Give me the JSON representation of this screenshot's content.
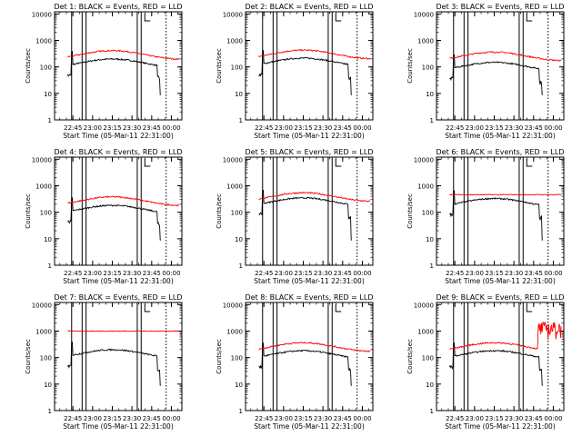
{
  "figure": {
    "background": "#ffffff",
    "axis_color": "#000000",
    "black_color": "#000000",
    "red_color": "#ff0000"
  },
  "chart_data": [
    {
      "type": "line",
      "title": "Det  1: BLACK = Events, RED = LLD",
      "xlabel": "Start Time (05-Mar-11 22:31:00)",
      "ylabel": "Counts/sec",
      "yscale": "log",
      "ylim": [
        1,
        12000
      ],
      "xticks": [
        "22:45",
        "23:00",
        "23:15",
        "23:30",
        "23:45",
        "00:00"
      ],
      "yticks": [
        "1",
        "10",
        "100",
        "1000",
        "10000"
      ],
      "solid_markers": [
        "22:44",
        "22:52",
        "22:55",
        "23:34",
        "23:37"
      ],
      "dotted_markers": [
        "23:56"
      ],
      "series": [
        {
          "color": "black",
          "level": 120,
          "profile": "events"
        },
        {
          "color": "red",
          "level": 250,
          "profile": "lld"
        }
      ]
    },
    {
      "type": "line",
      "title": "Det  2: BLACK = Events, RED = LLD",
      "xlabel": "Start Time (05-Mar-11 22:31:00)",
      "ylabel": "Counts/sec",
      "yscale": "log",
      "ylim": [
        1,
        12000
      ],
      "xticks": [
        "22:45",
        "23:00",
        "23:15",
        "23:30",
        "23:45",
        "00:00"
      ],
      "yticks": [
        "1",
        "10",
        "100",
        "1000",
        "10000"
      ],
      "solid_markers": [
        "22:44",
        "22:52",
        "22:55",
        "23:34",
        "23:37"
      ],
      "dotted_markers": [
        "23:56"
      ],
      "series": [
        {
          "color": "black",
          "level": 130,
          "profile": "events"
        },
        {
          "color": "red",
          "level": 260,
          "profile": "lld"
        }
      ]
    },
    {
      "type": "line",
      "title": "Det  3: BLACK = Events, RED = LLD",
      "xlabel": "Start Time (05-Mar-11 22:31:00)",
      "ylabel": "Counts/sec",
      "yscale": "log",
      "ylim": [
        1,
        12000
      ],
      "xticks": [
        "22:45",
        "23:00",
        "23:15",
        "23:30",
        "23:45",
        "00:00"
      ],
      "yticks": [
        "1",
        "10",
        "100",
        "1000",
        "10000"
      ],
      "solid_markers": [
        "22:44",
        "22:52",
        "22:55",
        "23:34",
        "23:37"
      ],
      "dotted_markers": [
        "23:56"
      ],
      "series": [
        {
          "color": "black",
          "level": 90,
          "profile": "events"
        },
        {
          "color": "red",
          "level": 220,
          "profile": "lld"
        }
      ]
    },
    {
      "type": "line",
      "title": "Det  4: BLACK = Events, RED = LLD",
      "xlabel": "Start Time (05-Mar-11 22:31:00)",
      "ylabel": "Counts/sec",
      "yscale": "log",
      "ylim": [
        1,
        12000
      ],
      "xticks": [
        "22:45",
        "23:00",
        "23:15",
        "23:30",
        "23:45",
        "00:00"
      ],
      "yticks": [
        "1",
        "10",
        "100",
        "1000",
        "10000"
      ],
      "solid_markers": [
        "22:44",
        "22:52",
        "22:55",
        "23:34",
        "23:37"
      ],
      "dotted_markers": [
        "23:56"
      ],
      "series": [
        {
          "color": "black",
          "level": 110,
          "profile": "events"
        },
        {
          "color": "red",
          "level": 230,
          "profile": "lld"
        }
      ]
    },
    {
      "type": "line",
      "title": "Det  5: BLACK = Events, RED = LLD",
      "xlabel": "Start Time (05-Mar-11 22:31:00)",
      "ylabel": "Counts/sec",
      "yscale": "log",
      "ylim": [
        1,
        12000
      ],
      "xticks": [
        "22:45",
        "23:00",
        "23:15",
        "23:30",
        "23:45",
        "00:00"
      ],
      "yticks": [
        "1",
        "10",
        "100",
        "1000",
        "10000"
      ],
      "solid_markers": [
        "22:44",
        "22:52",
        "22:55",
        "23:34",
        "23:37"
      ],
      "dotted_markers": [
        "23:56"
      ],
      "series": [
        {
          "color": "black",
          "level": 210,
          "profile": "events"
        },
        {
          "color": "red",
          "level": 330,
          "profile": "lld"
        }
      ]
    },
    {
      "type": "line",
      "title": "Det  6: BLACK = Events, RED = LLD",
      "xlabel": "Start Time (05-Mar-11 22:31:00)",
      "ylabel": "Counts/sec",
      "yscale": "log",
      "ylim": [
        1,
        12000
      ],
      "xticks": [
        "22:45",
        "23:00",
        "23:15",
        "23:30",
        "23:45",
        "00:00"
      ],
      "yticks": [
        "1",
        "10",
        "100",
        "1000",
        "10000"
      ],
      "solid_markers": [
        "22:44",
        "22:52",
        "22:55",
        "23:34",
        "23:37"
      ],
      "dotted_markers": [
        "23:56"
      ],
      "series": [
        {
          "color": "black",
          "level": 200,
          "profile": "events"
        },
        {
          "color": "red",
          "level": 460,
          "profile": "flat"
        }
      ]
    },
    {
      "type": "line",
      "title": "Det  7: BLACK = Events, RED = LLD",
      "xlabel": "Start Time (05-Mar-11 22:31:00)",
      "ylabel": "Counts/sec",
      "yscale": "log",
      "ylim": [
        1,
        12000
      ],
      "xticks": [
        "22:45",
        "23:00",
        "23:15",
        "23:30",
        "23:45",
        "00:00"
      ],
      "yticks": [
        "1",
        "10",
        "100",
        "1000",
        "10000"
      ],
      "solid_markers": [
        "22:44",
        "22:52",
        "22:55",
        "23:34",
        "23:37"
      ],
      "dotted_markers": [
        "23:56"
      ],
      "series": [
        {
          "color": "black",
          "level": 120,
          "profile": "events"
        },
        {
          "color": "red",
          "level": 1000,
          "profile": "flat"
        }
      ]
    },
    {
      "type": "line",
      "title": "Det  8: BLACK = Events, RED = LLD",
      "xlabel": "Start Time (05-Mar-11 22:31:00)",
      "ylabel": "Counts/sec",
      "yscale": "log",
      "ylim": [
        1,
        12000
      ],
      "xticks": [
        "22:45",
        "23:00",
        "23:15",
        "23:30",
        "23:45",
        "00:00"
      ],
      "yticks": [
        "1",
        "10",
        "100",
        "1000",
        "10000"
      ],
      "solid_markers": [
        "22:44",
        "22:52",
        "22:55",
        "23:34",
        "23:37"
      ],
      "dotted_markers": [
        "23:56"
      ],
      "series": [
        {
          "color": "black",
          "level": 110,
          "profile": "events"
        },
        {
          "color": "red",
          "level": 220,
          "profile": "lld"
        }
      ]
    },
    {
      "type": "line",
      "title": "Det  9: BLACK = Events, RED = LLD",
      "xlabel": "Start Time (05-Mar-11 22:31:00)",
      "ylabel": "Counts/sec",
      "yscale": "log",
      "ylim": [
        1,
        12000
      ],
      "xticks": [
        "22:45",
        "23:00",
        "23:15",
        "23:30",
        "23:45",
        "00:00"
      ],
      "yticks": [
        "1",
        "10",
        "100",
        "1000",
        "10000"
      ],
      "solid_markers": [
        "22:44",
        "22:52",
        "22:55",
        "23:34",
        "23:37"
      ],
      "dotted_markers": [
        "23:56"
      ],
      "series": [
        {
          "color": "black",
          "level": 110,
          "profile": "events"
        },
        {
          "color": "red",
          "level": 220,
          "profile": "noisy"
        }
      ]
    }
  ]
}
